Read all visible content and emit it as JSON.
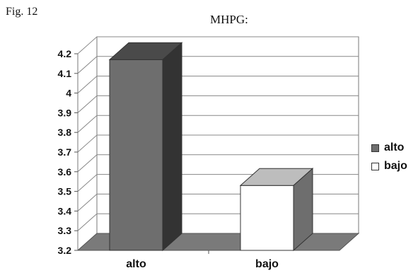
{
  "figure": {
    "label": "Fig. 12"
  },
  "chart_data": {
    "type": "bar",
    "title": "MHPG:",
    "categories": [
      "alto",
      "bajo"
    ],
    "values": [
      4.17,
      3.53
    ],
    "ylim": [
      3.2,
      4.2
    ],
    "yticks": [
      "3.2",
      "3.3",
      "3.4",
      "3.5",
      "3.6",
      "3.7",
      "3.8",
      "3.9",
      "4",
      "4.1",
      "4.2"
    ],
    "grid": true,
    "legend_position": "right",
    "legend": [
      {
        "name": "alto",
        "color": "#6e6e6e"
      },
      {
        "name": "bajo",
        "color": "#ffffff"
      }
    ],
    "bar_colors": {
      "front": [
        "#6e6e6e",
        "#ffffff"
      ],
      "top": [
        "#4a4a4a",
        "#bdbdbd"
      ],
      "side": [
        "#333333",
        "#6e6e6e"
      ]
    }
  }
}
